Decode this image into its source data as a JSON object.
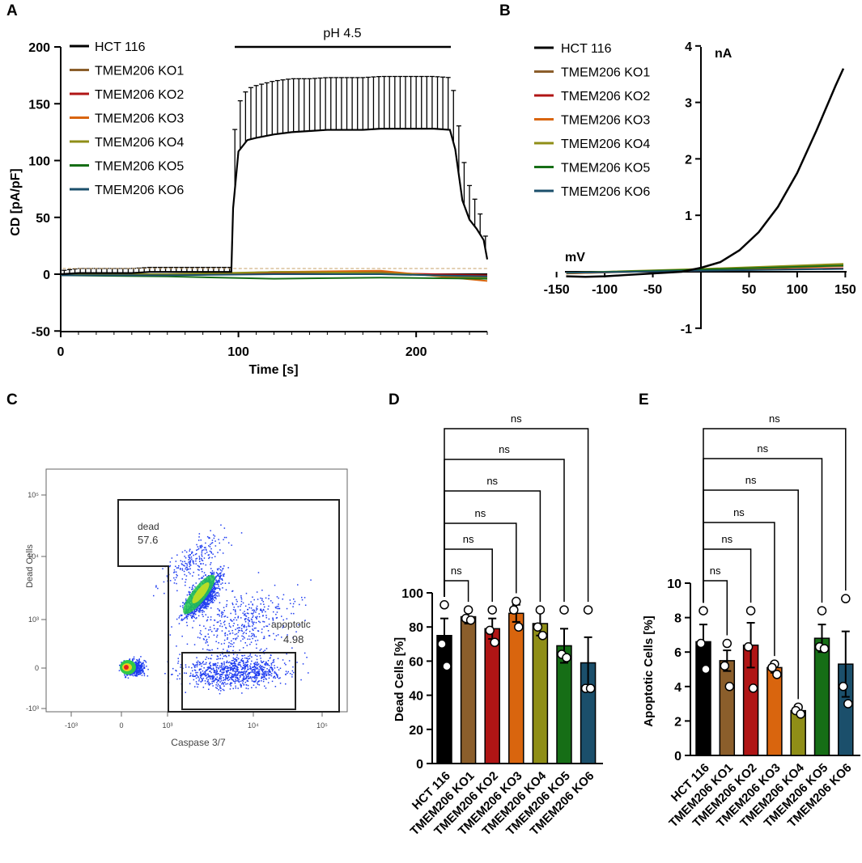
{
  "colors": {
    "hct116": "#000000",
    "ko1": "#8B5E2B",
    "ko2": "#B01515",
    "ko3": "#D9650E",
    "ko4": "#8F8E17",
    "ko5": "#166E16",
    "ko6": "#1B4F6B",
    "flow_dots": "#1E3CF0"
  },
  "legend_entries": [
    "HCT 116",
    "TMEM206 KO1",
    "TMEM206 KO2",
    "TMEM206 KO3",
    "TMEM206 KO4",
    "TMEM206 KO5",
    "TMEM206 KO6"
  ],
  "chart_data": [
    {
      "panel": "A",
      "type": "line",
      "xlabel": "Time [s]",
      "ylabel": "CD [pA/pF]",
      "xlim": [
        0,
        240
      ],
      "ylim": [
        -50,
        200
      ],
      "xticks": [
        "0",
        "100",
        "200"
      ],
      "yticks": [
        "-50",
        "0",
        "50",
        "100",
        "150",
        "200"
      ],
      "annotation": "pH 4.5",
      "annotation_range": [
        100,
        220
      ],
      "series": [
        {
          "name": "HCT 116",
          "color_key": "hct116",
          "x": [
            0,
            10,
            20,
            30,
            40,
            50,
            60,
            70,
            80,
            90,
            96,
            97,
            100,
            105,
            110,
            120,
            130,
            140,
            150,
            160,
            170,
            180,
            190,
            200,
            210,
            219,
            222,
            226,
            230,
            234,
            238,
            240
          ],
          "values": [
            0,
            1,
            1,
            1,
            1,
            2,
            2,
            2,
            2,
            2,
            2,
            58,
            108,
            118,
            120,
            123,
            125,
            126,
            127,
            127,
            127,
            128,
            128,
            128,
            128,
            127,
            110,
            65,
            48,
            40,
            30,
            13
          ],
          "error": [
            3,
            4,
            4,
            4,
            4,
            4,
            4,
            4,
            4,
            4,
            4,
            58,
            42,
            45,
            46,
            47,
            47,
            46,
            46,
            46,
            46,
            46,
            46,
            46,
            46,
            46,
            46,
            40,
            30,
            22,
            14,
            10
          ]
        },
        {
          "name": "TMEM206 KO1",
          "color_key": "ko1",
          "x": [
            0,
            60,
            120,
            180,
            240
          ],
          "values": [
            0,
            -1,
            2,
            2,
            -4
          ]
        },
        {
          "name": "TMEM206 KO2",
          "color_key": "ko2",
          "x": [
            0,
            60,
            120,
            180,
            240
          ],
          "values": [
            -1,
            0,
            1,
            1,
            -1
          ]
        },
        {
          "name": "TMEM206 KO3",
          "color_key": "ko3",
          "x": [
            0,
            60,
            120,
            180,
            240
          ],
          "values": [
            0,
            -1,
            2,
            3,
            -6
          ]
        },
        {
          "name": "TMEM206 KO4",
          "color_key": "ko4",
          "x": [
            0,
            60,
            120,
            180,
            240
          ],
          "values": [
            0,
            0,
            2,
            1,
            -3
          ]
        },
        {
          "name": "TMEM206 KO5",
          "color_key": "ko5",
          "x": [
            0,
            60,
            120,
            180,
            240
          ],
          "values": [
            -1,
            -2,
            -4,
            -3,
            -4
          ]
        },
        {
          "name": "TMEM206 KO6",
          "color_key": "ko6",
          "x": [
            0,
            60,
            120,
            180,
            240
          ],
          "values": [
            -1,
            -1,
            0,
            0,
            -2
          ]
        }
      ]
    },
    {
      "panel": "B",
      "type": "line",
      "xlabel": "mV",
      "ylabel": "nA",
      "xlim": [
        -150,
        150
      ],
      "ylim": [
        -1,
        4
      ],
      "xticks": [
        "-150",
        "-100",
        "-50",
        "50",
        "100",
        "150"
      ],
      "yticks": [
        "-1",
        "1",
        "2",
        "3",
        "4"
      ],
      "series": [
        {
          "name": "HCT 116",
          "color_key": "hct116",
          "x": [
            -140,
            -120,
            -100,
            -80,
            -60,
            -40,
            -20,
            0,
            20,
            40,
            60,
            80,
            100,
            120,
            140,
            148
          ],
          "values": [
            -0.08,
            -0.09,
            -0.08,
            -0.06,
            -0.04,
            -0.02,
            0.0,
            0.07,
            0.17,
            0.38,
            0.7,
            1.15,
            1.75,
            2.5,
            3.3,
            3.6
          ]
        },
        {
          "name": "TMEM206 KO1",
          "color_key": "ko1",
          "x": [
            -140,
            0,
            148
          ],
          "values": [
            -0.03,
            0.04,
            0.12
          ]
        },
        {
          "name": "TMEM206 KO2",
          "color_key": "ko2",
          "x": [
            -140,
            0,
            148
          ],
          "values": [
            -0.02,
            0.02,
            0.06
          ]
        },
        {
          "name": "TMEM206 KO3",
          "color_key": "ko3",
          "x": [
            -140,
            0,
            148
          ],
          "values": [
            -0.03,
            0.03,
            0.1
          ]
        },
        {
          "name": "TMEM206 KO4",
          "color_key": "ko4",
          "x": [
            -140,
            0,
            148
          ],
          "values": [
            -0.02,
            0.05,
            0.14
          ]
        },
        {
          "name": "TMEM206 KO5",
          "color_key": "ko5",
          "x": [
            -140,
            0,
            148
          ],
          "values": [
            -0.02,
            0.04,
            0.11
          ]
        },
        {
          "name": "TMEM206 KO6",
          "color_key": "ko6",
          "x": [
            -140,
            0,
            148
          ],
          "values": [
            -0.02,
            0.02,
            0.05
          ]
        }
      ]
    },
    {
      "panel": "C",
      "type": "scatter",
      "xlabel": "Caspase 3/7",
      "ylabel": "Dead Cells",
      "xticks": [
        "-10³",
        "0",
        "10³",
        "10⁴",
        "10⁵"
      ],
      "yticks": [
        "10⁵",
        "10⁴",
        "10³",
        "0",
        "-10³"
      ],
      "gates": [
        {
          "label": "dead",
          "value": "57.6"
        },
        {
          "label": "apoptotic",
          "value": "4.98"
        }
      ]
    },
    {
      "panel": "D",
      "type": "bar",
      "ylabel": "Dead Cells [%]",
      "ylim": [
        0,
        100
      ],
      "yticks": [
        "0",
        "20",
        "40",
        "60",
        "80",
        "100"
      ],
      "categories": [
        "HCT 116",
        "TMEM206 KO1",
        "TMEM206 KO2",
        "TMEM206 KO3",
        "TMEM206 KO4",
        "TMEM206 KO5",
        "TMEM206 KO6"
      ],
      "values": [
        75,
        86,
        79,
        88,
        82,
        69,
        59
      ],
      "error": [
        10,
        4,
        6,
        5,
        7,
        10,
        15
      ],
      "points": [
        [
          93,
          70,
          57
        ],
        [
          90,
          85,
          84
        ],
        [
          90,
          78,
          71
        ],
        [
          95,
          90,
          80
        ],
        [
          90,
          80,
          75
        ],
        [
          90,
          64,
          62
        ],
        [
          90,
          44,
          44
        ]
      ],
      "significance": [
        "ns",
        "ns",
        "ns",
        "ns",
        "ns",
        "ns"
      ]
    },
    {
      "panel": "E",
      "type": "bar",
      "ylabel": "Apoptotic Cells [%]",
      "ylim": [
        0,
        10
      ],
      "yticks": [
        "0",
        "2",
        "4",
        "6",
        "8",
        "10"
      ],
      "categories": [
        "HCT 116",
        "TMEM206 KO1",
        "TMEM206 KO2",
        "TMEM206 KO3",
        "TMEM206 KO4",
        "TMEM206 KO5",
        "TMEM206 KO6"
      ],
      "values": [
        6.6,
        5.5,
        6.4,
        5.1,
        2.6,
        6.8,
        5.3
      ],
      "error": [
        1.0,
        0.6,
        1.3,
        0.3,
        0.2,
        0.8,
        1.9
      ],
      "points": [
        [
          8.4,
          6.5,
          5.0
        ],
        [
          6.5,
          5.2,
          4.0
        ],
        [
          8.4,
          6.3,
          3.9
        ],
        [
          5.3,
          5.1,
          4.7
        ],
        [
          2.8,
          2.6,
          2.4
        ],
        [
          8.4,
          6.3,
          6.2
        ],
        [
          9.1,
          4.0,
          3.0
        ]
      ],
      "significance": [
        "ns",
        "ns",
        "ns",
        "ns",
        "ns",
        "ns"
      ]
    }
  ],
  "panel_labels": [
    "A",
    "B",
    "C",
    "D",
    "E"
  ]
}
